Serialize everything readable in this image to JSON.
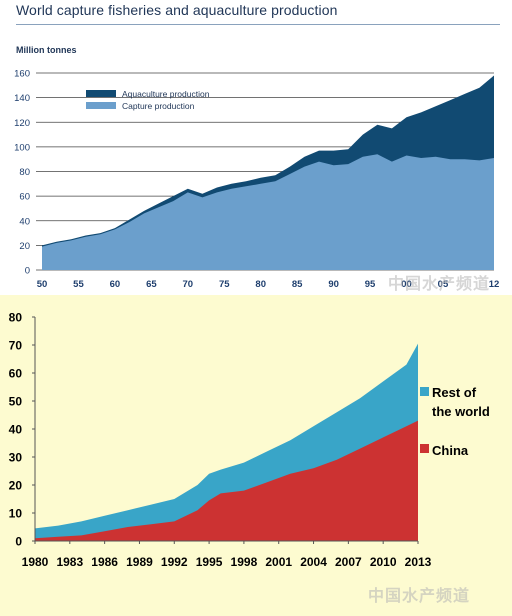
{
  "watermark": "中国水产频道",
  "chart_data": [
    {
      "type": "area",
      "title": "World capture fisheries and aquaculture production",
      "ylabel": "Million tonnes",
      "ylim": [
        0,
        160
      ],
      "yticks": [
        "0",
        "20",
        "40",
        "60",
        "80",
        "100",
        "120",
        "140",
        "160"
      ],
      "xlim": [
        1950,
        2012
      ],
      "xticks": [
        {
          "x": 1950,
          "label": "50"
        },
        {
          "x": 1955,
          "label": "55"
        },
        {
          "x": 1960,
          "label": "60"
        },
        {
          "x": 1965,
          "label": "65"
        },
        {
          "x": 1970,
          "label": "70"
        },
        {
          "x": 1975,
          "label": "75"
        },
        {
          "x": 1980,
          "label": "80"
        },
        {
          "x": 1985,
          "label": "85"
        },
        {
          "x": 1990,
          "label": "90"
        },
        {
          "x": 1995,
          "label": "95"
        },
        {
          "x": 2000,
          "label": "00"
        },
        {
          "x": 2005,
          "label": "05"
        },
        {
          "x": 2012,
          "label": "12"
        }
      ],
      "grid": true,
      "legend_position": "top-left",
      "colors": {
        "aquaculture": "#114a72",
        "capture": "#6b9fcc",
        "grid": "#444444",
        "ticks": "#1f3f6e"
      },
      "x": [
        1950,
        1952,
        1954,
        1956,
        1958,
        1960,
        1962,
        1964,
        1966,
        1968,
        1970,
        1972,
        1974,
        1976,
        1978,
        1980,
        1982,
        1984,
        1986,
        1988,
        1990,
        1992,
        1994,
        1996,
        1998,
        2000,
        2002,
        2004,
        2006,
        2008,
        2010,
        2012
      ],
      "series": [
        {
          "name": "Capture production",
          "stacked_total": false,
          "values": [
            19,
            22,
            24,
            27,
            29,
            33,
            39,
            46,
            51,
            56,
            63,
            59,
            63,
            66,
            68,
            70,
            72,
            78,
            84,
            88,
            85,
            86,
            92,
            94,
            88,
            93,
            91,
            92,
            90,
            90,
            89,
            91
          ]
        },
        {
          "name": "Aquaculture production",
          "stacked_total": true,
          "values": [
            20,
            23,
            25,
            28,
            30,
            34,
            41,
            48,
            54,
            60,
            66,
            62,
            67,
            70,
            72,
            75,
            77,
            84,
            92,
            97,
            97,
            98,
            110,
            118,
            115,
            124,
            128,
            133,
            138,
            143,
            148,
            158
          ]
        }
      ]
    },
    {
      "type": "area",
      "ylim": [
        0,
        80
      ],
      "yticks": [
        "0",
        "10",
        "20",
        "30",
        "40",
        "50",
        "60",
        "70",
        "80"
      ],
      "xlim": [
        1980,
        2013
      ],
      "xticks": [
        {
          "x": 1980,
          "label": "1980"
        },
        {
          "x": 1983,
          "label": "1983"
        },
        {
          "x": 1986,
          "label": "1986"
        },
        {
          "x": 1989,
          "label": "1989"
        },
        {
          "x": 1992,
          "label": "1992"
        },
        {
          "x": 1995,
          "label": "1995"
        },
        {
          "x": 1998,
          "label": "1998"
        },
        {
          "x": 2001,
          "label": "2001"
        },
        {
          "x": 2004,
          "label": "2004"
        },
        {
          "x": 2007,
          "label": "2007"
        },
        {
          "x": 2010,
          "label": "2010"
        },
        {
          "x": 2013,
          "label": "2013"
        }
      ],
      "grid": false,
      "legend_position": "right",
      "colors": {
        "rest": "#39a5c8",
        "china": "#cc3232",
        "background": "#fdfbd0"
      },
      "x": [
        1980,
        1982,
        1984,
        1986,
        1988,
        1990,
        1992,
        1994,
        1995,
        1996,
        1998,
        2000,
        2002,
        2004,
        2006,
        2008,
        2010,
        2012,
        2013
      ],
      "series": [
        {
          "name": "China",
          "stacked_total": false,
          "values": [
            1,
            1.5,
            2,
            3.5,
            5,
            6,
            7,
            11,
            14.5,
            17,
            18,
            21,
            24,
            26,
            29,
            33,
            37,
            41,
            43
          ]
        },
        {
          "name": "Rest of the world",
          "stacked_total": true,
          "values": [
            4.5,
            5.5,
            7,
            9,
            11,
            13,
            15,
            20,
            24,
            25.5,
            28,
            32,
            36,
            41,
            46,
            51,
            57,
            63,
            70.5
          ]
        }
      ]
    }
  ]
}
